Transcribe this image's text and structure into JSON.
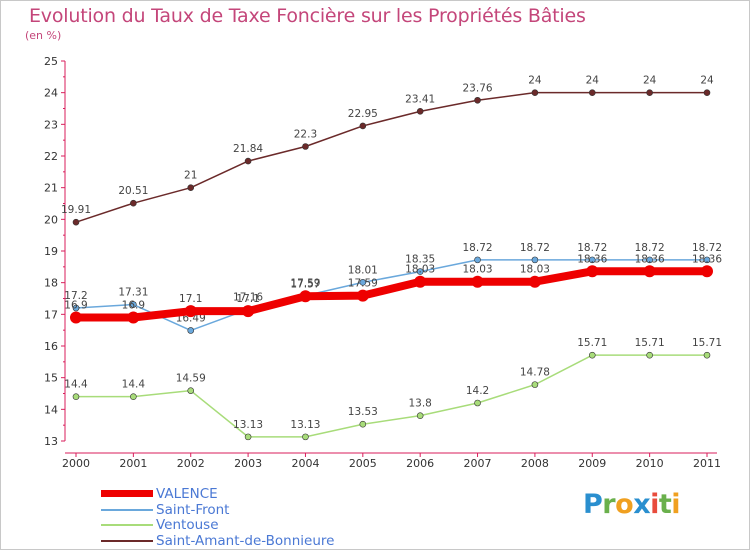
{
  "title": "Evolution du Taux de Taxe Foncière sur les Propriétés Bâties",
  "subtitle": "(en %)",
  "logo": {
    "letters": [
      "P",
      "r",
      "o",
      "x",
      "i",
      "t",
      "i"
    ],
    "colors": [
      "#2a8fcf",
      "#6ab04c",
      "#f0a020",
      "#2a8fcf",
      "#e84c3c",
      "#6ab04c",
      "#f0a020"
    ]
  },
  "chart_data": {
    "type": "line",
    "title": "Evolution du Taux de Taxe Foncière sur les Propriétés Bâties",
    "ylabel": "(en %)",
    "xlabel": "",
    "categories": [
      "2000",
      "2001",
      "2002",
      "2003",
      "2004",
      "2005",
      "2006",
      "2007",
      "2008",
      "2009",
      "2010",
      "2011"
    ],
    "ylim": [
      13,
      25
    ],
    "yticks": [
      13,
      14,
      15,
      16,
      17,
      18,
      19,
      20,
      21,
      22,
      23,
      24,
      25
    ],
    "grid": false,
    "legend_position": "bottom-left",
    "series": [
      {
        "name": "Saint-Amant-de-Bonnieure",
        "color": "#6b2a2a",
        "values": [
          19.91,
          20.51,
          21,
          21.84,
          22.3,
          22.95,
          23.41,
          23.76,
          24,
          24,
          24,
          24
        ],
        "labels": [
          "19.91",
          "20.51",
          "21",
          "21.84",
          "22.3",
          "22.95",
          "23.41",
          "23.76",
          "24",
          "24",
          "24",
          "24"
        ]
      },
      {
        "name": "Ventouse",
        "color": "#a8dc7a",
        "values": [
          14.4,
          14.4,
          14.59,
          13.13,
          13.13,
          13.53,
          13.8,
          14.2,
          14.78,
          15.71,
          15.71,
          15.71
        ],
        "labels": [
          "14.4",
          "14.4",
          "14.59",
          "13.13",
          "13.13",
          "13.53",
          "13.8",
          "14.2",
          "14.78",
          "15.71",
          "15.71",
          "15.71"
        ]
      },
      {
        "name": "Saint-Front",
        "color": "#6aa8dc",
        "values": [
          17.2,
          17.31,
          16.49,
          17.16,
          17.59,
          18.01,
          18.35,
          18.72,
          18.72,
          18.72,
          18.72,
          18.72
        ],
        "labels": [
          "17.2",
          "17.31",
          "16.49",
          "17.16",
          "17.59",
          "18.01",
          "18.35",
          "18.72",
          "18.72",
          "18.72",
          "18.72",
          "18.72"
        ]
      },
      {
        "name": "VALENCE",
        "color": "#ee0000",
        "values": [
          16.9,
          16.9,
          17.1,
          17.1,
          17.57,
          17.59,
          18.03,
          18.03,
          18.03,
          18.36,
          18.36,
          18.36
        ],
        "labels": [
          "16.9",
          "16.9",
          "17.1",
          "17.1",
          "17.57",
          "17.59",
          "18.03",
          "18.03",
          "18.03",
          "18.36",
          "18.36",
          "18.36"
        ]
      }
    ]
  },
  "legend": [
    {
      "name": "VALENCE",
      "color": "#ee0000"
    },
    {
      "name": "Saint-Front",
      "color": "#6aa8dc"
    },
    {
      "name": "Ventouse",
      "color": "#a8dc7a"
    },
    {
      "name": "Saint-Amant-de-Bonnieure",
      "color": "#6b2a2a"
    }
  ]
}
